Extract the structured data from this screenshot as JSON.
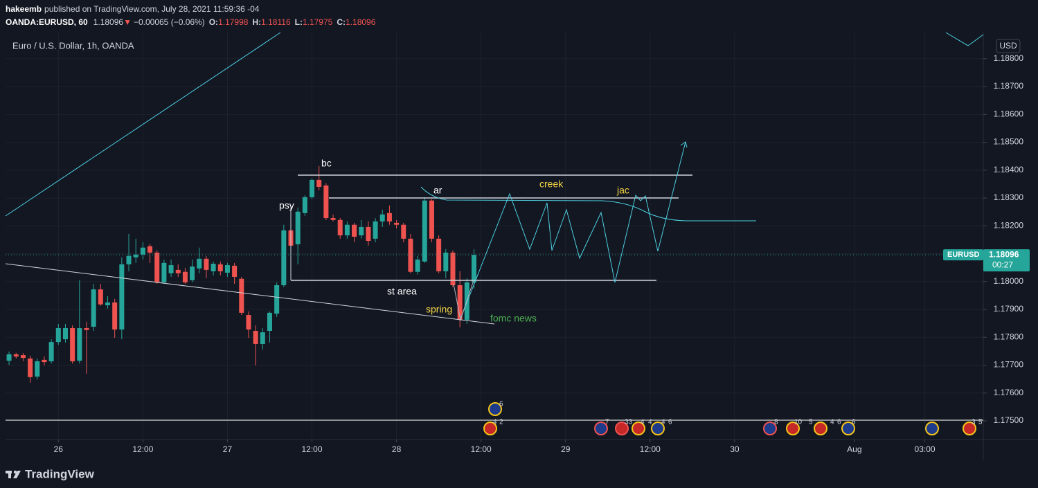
{
  "header": {
    "user": "hakeemb",
    "published": "published on TradingView.com, July 28, 2021 11:59:36 -04",
    "symbol": "OANDA:EURUSD, 60",
    "arrow": "▼",
    "change": "−0.00065 (−0.06%)",
    "ohlc_labels": [
      "O:",
      "H:",
      "L:",
      "C:"
    ]
  },
  "chart_data": {
    "type": "candlestick",
    "title": "Euro / U.S. Dollar, 1h, OANDA",
    "currency": "USD",
    "symbol": "EURUSD",
    "countdown": "00:27",
    "up_color": "#26a69a",
    "down_color": "#ef5350",
    "grid": true,
    "open": [
      1.17716,
      1.17739,
      1.17736,
      1.17724,
      1.17659,
      1.17719,
      1.17714,
      1.17783,
      1.17793,
      1.17833,
      1.17716,
      1.17833,
      1.17838,
      1.17972,
      1.17915,
      1.17925,
      1.17828,
      1.18062,
      1.18087,
      1.18097,
      1.18127,
      1.18104,
      1.17997,
      1.1803,
      1.18042,
      1.18035,
      1.18005,
      1.18047,
      1.18082,
      1.18037,
      1.18062,
      1.18032,
      1.18057,
      1.1801,
      1.1788,
      1.17823,
      1.17776,
      1.17823,
      1.17885,
      1.17987,
      1.18184,
      1.18134,
      1.18246,
      1.18303,
      1.18365,
      1.18345,
      1.18228,
      1.18221,
      1.18166,
      1.18204,
      1.18166,
      1.18196,
      1.18154,
      1.18216,
      1.18246,
      1.18211,
      1.18204,
      1.18154,
      1.18035,
      1.18072,
      1.18291,
      1.18154,
      1.18037,
      1.18104,
      1.17987,
      1.17863,
      1.17998
    ],
    "high": [
      1.17749,
      1.17744,
      1.17744,
      1.17734,
      1.17724,
      1.17731,
      1.17793,
      1.17848,
      1.17848,
      1.17843,
      1.18005,
      1.17856,
      1.17992,
      1.17992,
      1.17948,
      1.17938,
      1.18087,
      1.18171,
      1.18154,
      1.18141,
      1.18136,
      1.18112,
      1.18079,
      1.18079,
      1.18062,
      1.18049,
      1.18079,
      1.18122,
      1.18092,
      1.18072,
      1.18072,
      1.18067,
      1.18067,
      1.18017,
      1.17893,
      1.17843,
      1.17833,
      1.17893,
      1.17997,
      1.18204,
      1.18266,
      1.18266,
      1.1831,
      1.1837,
      1.18415,
      1.18353,
      1.18241,
      1.18228,
      1.18216,
      1.18211,
      1.18221,
      1.18216,
      1.18228,
      1.18258,
      1.18273,
      1.18221,
      1.18211,
      1.18171,
      1.18092,
      1.18303,
      1.18296,
      1.18166,
      1.18117,
      1.18112,
      1.18037,
      1.18012,
      1.18116
    ],
    "low": [
      1.17701,
      1.17724,
      1.17714,
      1.17637,
      1.17649,
      1.17699,
      1.17706,
      1.17773,
      1.17781,
      1.17706,
      1.17706,
      1.17669,
      1.17823,
      1.17913,
      1.17903,
      1.17798,
      1.17793,
      1.18037,
      1.18067,
      1.18079,
      1.18067,
      1.17992,
      1.17992,
      1.18017,
      1.18017,
      1.17992,
      1.17997,
      1.1803,
      1.18012,
      1.18022,
      1.18022,
      1.18017,
      1.17992,
      1.1788,
      1.17798,
      1.17699,
      1.17756,
      1.17781,
      1.17873,
      1.1798,
      1.18092,
      1.18062,
      1.18236,
      1.18296,
      1.18328,
      1.18221,
      1.18216,
      1.18154,
      1.18154,
      1.18141,
      1.18154,
      1.18129,
      1.18141,
      1.18196,
      1.18204,
      1.18191,
      1.18141,
      1.1803,
      1.18025,
      1.18067,
      1.18141,
      1.1803,
      1.18012,
      1.1798,
      1.17836,
      1.17848,
      1.17975
    ],
    "close": [
      1.17739,
      1.17731,
      1.17726,
      1.17657,
      1.17714,
      1.17711,
      1.17783,
      1.17833,
      1.17833,
      1.17714,
      1.17833,
      1.17826,
      1.17972,
      1.17918,
      1.17925,
      1.17828,
      1.18062,
      1.18092,
      1.18097,
      1.18122,
      1.18104,
      1.17997,
      1.18067,
      1.18059,
      1.1803,
      1.17997,
      1.18054,
      1.18082,
      1.18042,
      1.18064,
      1.18037,
      1.18059,
      1.18017,
      1.17888,
      1.17828,
      1.17776,
      1.17818,
      1.17888,
      1.17987,
      1.18184,
      1.18129,
      1.18251,
      1.18303,
      1.18365,
      1.1834,
      1.18228,
      1.18221,
      1.18166,
      1.18204,
      1.18161,
      1.18196,
      1.18146,
      1.18216,
      1.18241,
      1.18216,
      1.18204,
      1.18154,
      1.18035,
      1.18079,
      1.18291,
      1.18154,
      1.18037,
      1.18104,
      1.17987,
      1.17863,
      1.17997,
      1.18096
    ],
    "xlim": [
      -0.5,
      138.3
    ],
    "xticks": [
      {
        "value": 7,
        "label": "26"
      },
      {
        "value": 19,
        "label": "12:00"
      },
      {
        "value": 31,
        "label": "27"
      },
      {
        "value": 43,
        "label": "12:00"
      },
      {
        "value": 55,
        "label": "28"
      },
      {
        "value": 67,
        "label": "12:00"
      },
      {
        "value": 79,
        "label": "29"
      },
      {
        "value": 91,
        "label": "12:00"
      },
      {
        "value": 103,
        "label": "30"
      },
      {
        "value": 120,
        "label": "Aug"
      },
      {
        "value": 130,
        "label": "03:00"
      }
    ],
    "ylim": [
      1.17433,
      1.18894
    ],
    "yticks": [
      {
        "value": 1.175,
        "label": "1.17500"
      },
      {
        "value": 1.176,
        "label": "1.17600"
      },
      {
        "value": 1.177,
        "label": "1.17700"
      },
      {
        "value": 1.178,
        "label": "1.17800"
      },
      {
        "value": 1.179,
        "label": "1.17900"
      },
      {
        "value": 1.18,
        "label": "1.18000"
      },
      {
        "value": 1.181,
        "label": "1.18100"
      },
      {
        "value": 1.182,
        "label": "1.18200"
      },
      {
        "value": 1.183,
        "label": "1.18300"
      },
      {
        "value": 1.184,
        "label": "1.18400"
      },
      {
        "value": 1.185,
        "label": "1.18500"
      },
      {
        "value": 1.186,
        "label": "1.18600"
      },
      {
        "value": 1.187,
        "label": "1.18700"
      },
      {
        "value": 1.188,
        "label": "1.18800"
      }
    ],
    "annotations": [
      "bc",
      "psy",
      "ar",
      "creek",
      "jac",
      "st area",
      "spring",
      "fomc news"
    ],
    "events": [
      "6",
      "4",
      "2",
      "7",
      "33",
      "4",
      "4",
      "4",
      "6",
      "8",
      "10",
      "5",
      "4",
      "6",
      "6",
      "3",
      "5"
    ]
  },
  "footer": {
    "brand": "TradingView"
  }
}
